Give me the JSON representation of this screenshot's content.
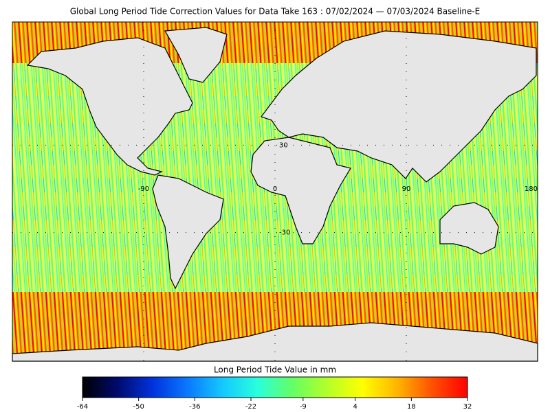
{
  "title": "Global Long Period Tide Correction Values for Data Take 163 : 07/02/2024 — 07/03/2024 Baseline-E",
  "map": {
    "parallels": [
      30,
      -30
    ],
    "meridians": [
      -90,
      0,
      90,
      180
    ]
  },
  "colorbar": {
    "label": "Long Period Tide Value in mm",
    "lim": [
      -64,
      32
    ],
    "ticks": [
      -64,
      -50,
      -36,
      -22,
      -9,
      4,
      18,
      32
    ],
    "colors": [
      "#000000",
      "#000a6e",
      "#0032dc",
      "#0a78ff",
      "#14c8ff",
      "#28ffdc",
      "#64ff64",
      "#b4ff28",
      "#ffff00",
      "#ffb400",
      "#ff5000",
      "#ff0000"
    ]
  }
}
